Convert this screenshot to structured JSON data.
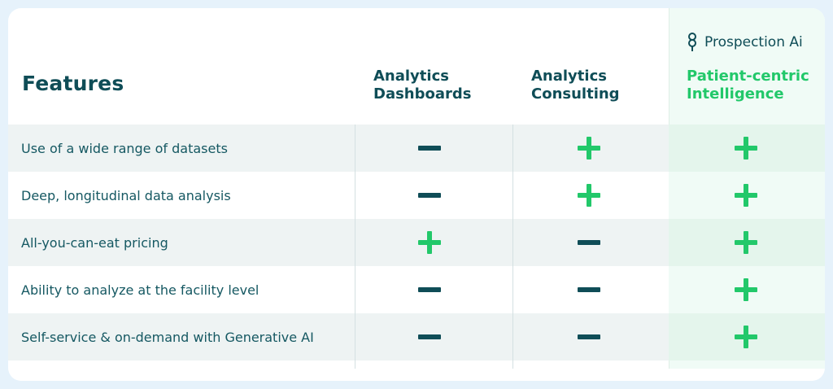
{
  "brand": {
    "name": "Prospection Ai",
    "icon": "prospection-logo-icon",
    "accent": "#22c86a",
    "text_color": "#0f4d57"
  },
  "header": {
    "features_label": "Features",
    "columns": [
      {
        "line1": "Analytics",
        "line2": "Dashboards"
      },
      {
        "line1": "Analytics",
        "line2": "Consulting"
      },
      {
        "line1": "Patient-centric",
        "line2": "Intelligence"
      }
    ]
  },
  "rows": [
    {
      "label": "Use of a wide range of datasets",
      "values": [
        "minus",
        "plus",
        "plus"
      ]
    },
    {
      "label": "Deep, longitudinal data analysis",
      "values": [
        "minus",
        "plus",
        "plus"
      ]
    },
    {
      "label": "All-you-can-eat pricing",
      "values": [
        "plus",
        "minus",
        "plus"
      ]
    },
    {
      "label": "Ability to analyze at the facility level",
      "values": [
        "minus",
        "minus",
        "plus"
      ]
    },
    {
      "label": "Self-service & on-demand with Generative AI",
      "values": [
        "minus",
        "minus",
        "plus"
      ]
    }
  ]
}
